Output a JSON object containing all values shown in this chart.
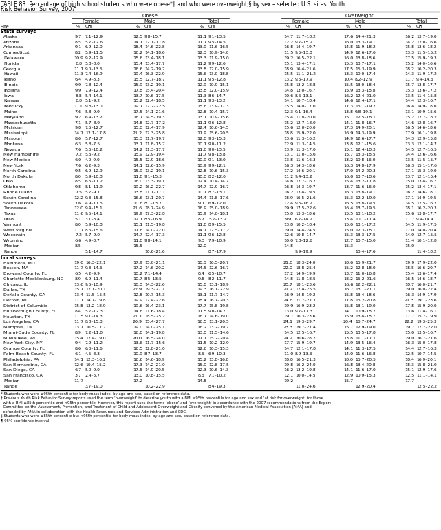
{
  "title_line1": "TABLE 83. Percentage of high school students who were obese*† and who were overweight,§ by sex – selected U.S. sites, Youth",
  "title_line2": "Risk Behavior Survey, 2007",
  "footnotes": [
    "* Students who were ≥95th percentile for body mass index, by age and sex, based on reference data.",
    "† Previous Youth Risk Behavior Survey reports used the term ‘overweight’ to describe youth with a BMI ≥95th percentile for age and sex and ‘at risk for overweight’ for those",
    "  with a BMI ≥85th percentile and <95th percentile. However, this report uses the terms ‘obese’ and ‘overweight’ in accordance with the 2007 recommendations from the Expert",
    "  Committee on the Assessment, Prevention, and Treatment of Child and Adolescent Overweight and Obesity convened by the American Medical Association (AMA) and",
    "  cofunded by AMA in collaboration with the Health Resources and Services Administration and CDC.",
    "§ Students who were ≥85th percentile but <95th percentile for body mass index, by age and sex, based on reference data.",
    "¶ 95% confidence interval."
  ],
  "states": [
    [
      "Alaska",
      "9.7",
      "7.1–12.9",
      "12.5",
      "9.8–15.7",
      "11.1",
      "9.1–13.5",
      "14.7",
      "11.7–18.2",
      "17.6",
      "14.4–21.3",
      "16.2",
      "13.7–19.0"
    ],
    [
      "Arizona",
      "8.5",
      "5.7–12.6",
      "14.7",
      "12.1–17.8",
      "11.7",
      "9.5–14.5",
      "12.2",
      "9.7–15.2",
      "16.0",
      "13.3–19.1",
      "14.2",
      "12.0–16.6"
    ],
    [
      "Arkansas",
      "9.1",
      "6.9–12.0",
      "18.4",
      "14.6–22.8",
      "13.9",
      "11.6–16.5",
      "16.8",
      "14.4–19.7",
      "14.8",
      "11.9–18.2",
      "15.8",
      "13.6–18.2"
    ],
    [
      "Connecticut",
      "8.2",
      "5.9–11.5",
      "16.2",
      "14.1–18.6",
      "12.3",
      "10.9–14.0",
      "11.5",
      "9.5–13.8",
      "14.9",
      "12.6–17.6",
      "13.3",
      "11.5–15.2"
    ],
    [
      "Delaware",
      "10.9",
      "9.2–12.9",
      "15.6",
      "13.4–18.1",
      "13.3",
      "11.9–15.0",
      "19.2",
      "16.5–22.1",
      "16.0",
      "13.8–18.6",
      "17.5",
      "15.9–19.3"
    ],
    [
      "Florida",
      "6.8",
      "5.8–8.0",
      "15.4",
      "13.4–17.7",
      "11.2",
      "9.9–12.6",
      "15.1",
      "13.4–17.1",
      "15.3",
      "13.7–17.1",
      "15.2",
      "14.0–16.6"
    ],
    [
      "Georgia",
      "11.1",
      "9.0–13.5",
      "16.6",
      "14.2–19.2",
      "13.8",
      "12.0–15.9",
      "18.9",
      "16.4–21.6",
      "17.5",
      "15.3–19.9",
      "18.2",
      "16.2–20.3"
    ],
    [
      "Hawaii",
      "11.3",
      "7.4–16.9",
      "19.4",
      "16.3–22.9",
      "15.6",
      "13.0–18.8",
      "15.5",
      "11.1–21.2",
      "13.3",
      "10.0–17.4",
      "14.3",
      "11.9–17.2"
    ],
    [
      "Idaho",
      "6.4",
      "4.9–8.3",
      "15.5",
      "12.7–18.7",
      "11.1",
      "9.5–12.8",
      "13.2",
      "9.5–17.9",
      "10.4",
      "8.2–12.9",
      "11.7",
      "9.4–14.6"
    ],
    [
      "Illinois",
      "9.9",
      "7.8–12.4",
      "15.9",
      "13.2–19.1",
      "12.9",
      "10.9–15.1",
      "15.8",
      "13.2–18.8",
      "15.5",
      "13.0–18.4",
      "15.7",
      "13.8–17.7"
    ],
    [
      "Indiana",
      "9.9",
      "7.9–12.4",
      "17.8",
      "15.4–20.4",
      "13.8",
      "12.0–15.9",
      "14.8",
      "13.0–16.7",
      "15.9",
      "13.3–18.8",
      "15.3",
      "13.6–17.2"
    ],
    [
      "Iowa",
      "8.8",
      "5.4–14.1",
      "13.7",
      "10.6–17.5",
      "11.3",
      "8.6–14.7",
      "10.6",
      "8.6–13.1",
      "16.2",
      "12.4–21.0",
      "13.5",
      "11.4–15.8"
    ],
    [
      "Kansas",
      "6.8",
      "5.1–9.2",
      "15.2",
      "12.4–18.5",
      "11.1",
      "9.3–13.2",
      "14.1",
      "10.7–18.4",
      "14.6",
      "12.4–17.1",
      "14.4",
      "12.3–16.7"
    ],
    [
      "Kentucky",
      "11.0",
      "9.3–13.0",
      "19.7",
      "17.2–22.5",
      "15.6",
      "13.9–17.3",
      "15.5",
      "14.0–17.0",
      "17.3",
      "15.1–19.7",
      "16.4",
      "14.9–18.0"
    ],
    [
      "Maine",
      "7.6",
      "5.8–9.9",
      "17.5",
      "14.1–21.6",
      "12.8",
      "10.4–15.7",
      "12.3",
      "9.1–16.4",
      "13.8",
      "9.8–19.1",
      "13.1",
      "10.9–15.6"
    ],
    [
      "Maryland",
      "9.2",
      "6.4–13.2",
      "16.7",
      "14.5–19.3",
      "13.1",
      "10.9–15.6",
      "15.4",
      "11.8–20.0",
      "15.1",
      "12.5–18.1",
      "15.2",
      "12.7–18.2"
    ],
    [
      "Massachusetts",
      "7.1",
      "5.7–8.9",
      "14.8",
      "12.7–17.2",
      "11.1",
      "9.6–12.8",
      "15.2",
      "12.7–18.0",
      "14.1",
      "11.8–16.7",
      "14.6",
      "12.8–16.7"
    ],
    [
      "Michigan",
      "9.8",
      "7.5–12.7",
      "15.0",
      "12.4–17.9",
      "12.4",
      "10.6–14.5",
      "15.6",
      "12.0–20.0",
      "17.3",
      "14.9–20.1",
      "16.5",
      "14.6–18.6"
    ],
    [
      "Mississippi",
      "14.7",
      "12.1–17.8",
      "21.2",
      "17.3–25.8",
      "17.9",
      "15.6–20.5",
      "18.8",
      "15.9–22.0",
      "16.9",
      "14.3–19.9",
      "17.9",
      "16.1–19.8"
    ],
    [
      "Missouri",
      "8.6",
      "5.7–12.7",
      "15.3",
      "11.7–19.7",
      "12.0",
      "9.3–15.3",
      "13.6",
      "11.3–16.2",
      "14.9",
      "12.6–17.7",
      "14.3",
      "12.9–15.8"
    ],
    [
      "Montana",
      "6.3",
      "5.3–7.5",
      "13.7",
      "11.8–15.7",
      "10.1",
      "9.0–11.2",
      "12.9",
      "11.3–14.5",
      "13.8",
      "12.1–15.6",
      "13.3",
      "12.1–14.7"
    ],
    [
      "Nevada",
      "7.6",
      "5.6–10.2",
      "14.2",
      "11.3–17.7",
      "11.0",
      "9.0–13.5",
      "13.9",
      "11.3–17.0",
      "15.1",
      "12.4–18.3",
      "14.5",
      "12.7–16.5"
    ],
    [
      "New Hampshire",
      "7.2",
      "5.6–9.2",
      "15.9",
      "12.9–19.4",
      "11.7",
      "9.8–13.8",
      "13.1",
      "11.0–15.6",
      "15.7",
      "13.3–18.5",
      "14.4",
      "12.6–16.6"
    ],
    [
      "New Mexico",
      "6.0",
      "4.0–9.0",
      "15.5",
      "12.9–18.6",
      "10.9",
      "9.1–13.0",
      "13.8",
      "11.6–16.3",
      "13.2",
      "10.8–16.0",
      "13.5",
      "11.5–15.7"
    ],
    [
      "New York",
      "7.6",
      "6.2–9.3",
      "14.1",
      "12.6–15.9",
      "10.9",
      "9.9–12.1",
      "16.3",
      "14.3–18.6",
      "16.3",
      "14.8–17.9",
      "16.3",
      "15.1–17.6"
    ],
    [
      "North Carolina",
      "9.5",
      "6.9–12.9",
      "15.9",
      "13.2–19.1",
      "12.8",
      "10.6–15.3",
      "17.2",
      "14.6–20.1",
      "17.0",
      "14.2–20.3",
      "17.1",
      "15.3–19.0"
    ],
    [
      "North Dakota",
      "8.0",
      "5.9–10.8",
      "11.8",
      "9.1–15.3",
      "10.0",
      "8.2–12.0",
      "11.2",
      "9.4–13.2",
      "16.0",
      "13.7–18.6",
      "13.7",
      "12.1–15.4"
    ],
    [
      "Ohio",
      "8.5",
      "6.5–11.2",
      "16.0",
      "13.3–19.1",
      "12.4",
      "10.4–14.7",
      "14.6",
      "12.7–16.7",
      "15.4",
      "13.2–17.8",
      "15.0",
      "13.4–16.7"
    ],
    [
      "Oklahoma",
      "9.8",
      "8.1–11.9",
      "19.2",
      "16.2–22.7",
      "14.7",
      "12.9–16.7",
      "16.8",
      "14.3–19.7",
      "13.7",
      "11.6–16.0",
      "15.2",
      "13.4–17.1"
    ],
    [
      "Rhode Island",
      "7.5",
      "5.7–9.7",
      "13.8",
      "11.1–17.1",
      "10.7",
      "8.7–13.1",
      "16.2",
      "13.4–19.5",
      "16.3",
      "13.8–19.1",
      "16.2",
      "14.6–18.1"
    ],
    [
      "South Carolina",
      "12.2",
      "9.3–15.8",
      "16.6",
      "13.1–20.7",
      "14.4",
      "11.8–17.6",
      "18.9",
      "16.5–21.6",
      "15.3",
      "12.2–19.0",
      "17.1",
      "14.9–19.5"
    ],
    [
      "South Dakota",
      "7.6",
      "4.9–11.5",
      "10.6",
      "8.1–13.7",
      "9.1",
      "6.9–12.0",
      "12.4",
      "9.5–16.2",
      "16.5",
      "13.8–19.5",
      "14.5",
      "12.5–16.7"
    ],
    [
      "Tennessee",
      "12.0",
      "9.4–15.1",
      "21.6",
      "18.7–24.9",
      "16.9",
      "15.0–18.9",
      "19.9",
      "17.5–22.6",
      "16.4",
      "13.7–19.5",
      "18.1",
      "16.2–20.3"
    ],
    [
      "Texas",
      "11.6",
      "9.5–14.1",
      "19.9",
      "17.3–22.8",
      "15.9",
      "14.0–18.1",
      "15.8",
      "13.3–18.6",
      "15.5",
      "13.1–18.2",
      "15.6",
      "13.8–17.7"
    ],
    [
      "Utah",
      "5.1",
      "3.1–8.4",
      "12.1",
      "8.5–16.9",
      "8.7",
      "5.7–13.2",
      "9.9",
      "6.7–14.2",
      "13.4",
      "10.1–17.4",
      "11.7",
      "9.4–14.4"
    ],
    [
      "Vermont",
      "8.0",
      "5.9–10.8",
      "15.1",
      "11.5–19.8",
      "11.8",
      "8.9–15.5",
      "13.8",
      "10.2–18.4",
      "15.0",
      "13.1–17.2",
      "14.5",
      "11.9–17.5"
    ],
    [
      "West Virginia",
      "11.7",
      "8.6–15.6",
      "17.6",
      "14.0–22.0",
      "14.7",
      "12.5–17.2",
      "19.0",
      "14.4–24.5",
      "15.0",
      "12.3–18.1",
      "17.0",
      "14.0–20.4"
    ],
    [
      "Wisconsin",
      "7.2",
      "5.7–9.0",
      "14.7",
      "12.4–17.3",
      "11.1",
      "9.6–12.8",
      "12.6",
      "10.8–14.7",
      "15.3",
      "13.3–17.5",
      "14.0",
      "12.7–15.5"
    ],
    [
      "Wyoming",
      "6.6",
      "4.9–8.7",
      "11.8",
      "9.8–14.1",
      "9.3",
      "7.9–10.9",
      "10.0",
      "7.8–12.6",
      "12.7",
      "10.7–15.0",
      "11.4",
      "10.1–12.8"
    ]
  ],
  "state_median": [
    "Median",
    "8.5",
    "",
    "15.5",
    "",
    "12.0",
    "",
    "14.8",
    "",
    "15.3",
    "",
    "15.0",
    ""
  ],
  "state_range": [
    "Range",
    "5.1–14.7",
    "",
    "10.6–21.6",
    "",
    "8.7–17.9",
    "",
    "9.9–19.9",
    "",
    "10.4–17.6",
    "",
    "11.4–18.2",
    ""
  ],
  "locals": [
    [
      "Baltimore, MD",
      "19.0",
      "16.3–22.1",
      "17.9",
      "15.0–21.1",
      "18.5",
      "16.5–20.7",
      "21.0",
      "18.3–24.0",
      "18.6",
      "15.9–21.7",
      "19.9",
      "17.9–22.0"
    ],
    [
      "Boston, MA",
      "11.7",
      "9.3–14.6",
      "17.2",
      "14.6–20.2",
      "14.5",
      "12.6–16.7",
      "22.0",
      "18.8–25.4",
      "15.2",
      "12.8–18.0",
      "18.5",
      "16.6–20.7"
    ],
    [
      "Broward County, FL",
      "6.5",
      "4.2–9.9",
      "10.2",
      "7.1–14.4",
      "8.4",
      "6.5–10.7",
      "17.2",
      "14.9–19.9",
      "13.7",
      "11.0–16.8",
      "15.4",
      "13.6–17.4"
    ],
    [
      "Charlotte-Mecklenburg, NC",
      "8.9",
      "6.9–11.4",
      "10.7",
      "8.5–13.5",
      "9.8",
      "8.2–11.7",
      "14.8",
      "11.8–18.5",
      "18.2",
      "15.2–21.6",
      "16.5",
      "14.6–18.7"
    ],
    [
      "Chicago, IL",
      "13.6",
      "9.6–18.9",
      "18.0",
      "14.3–22.6",
      "15.8",
      "13.1–18.9",
      "20.7",
      "18.1–23.6",
      "16.6",
      "12.2–22.1",
      "18.7",
      "16.0–21.7"
    ],
    [
      "Dallas, TX",
      "15.7",
      "12.1–20.1",
      "22.9",
      "19.3–27.1",
      "19.3",
      "16.1–22.9",
      "21.2",
      "17.4–25.5",
      "16.7",
      "13.1–21.1",
      "19.0",
      "16.0–22.4"
    ],
    [
      "DeKalb County, GA",
      "13.4",
      "11.5–15.5",
      "12.8",
      "10.7–15.3",
      "13.1",
      "11.7–14.7",
      "16.9",
      "14.8–19.2",
      "15.8",
      "13.4–18.6",
      "16.3",
      "14.9–17.9"
    ],
    [
      "Detroit, MI",
      "17.1",
      "14.7–19.8",
      "19.9",
      "17.4–22.6",
      "18.4",
      "16.7–20.3",
      "24.6",
      "21.7–27.7",
      "17.8",
      "15.2–20.8",
      "21.3",
      "19.1–23.6"
    ],
    [
      "District of Columbia",
      "15.8",
      "13.2–18.9",
      "19.6",
      "16.4–23.1",
      "17.7",
      "15.8–19.8",
      "19.9",
      "16.9–23.2",
      "15.8",
      "13.1–19.0",
      "17.8",
      "15.9–20.0"
    ],
    [
      "Hillsborough County, FL",
      "8.4",
      "5.7–12.3",
      "14.6",
      "11.6–18.4",
      "11.5",
      "9.0–14.7",
      "13.0",
      "9.7–17.3",
      "14.1",
      "10.9–18.2",
      "13.6",
      "11.4–16.1"
    ],
    [
      "Houston, TX",
      "11.5",
      "9.1–14.3",
      "21.7",
      "18.5–25.2",
      "16.7",
      "14.6–19.0",
      "19.7",
      "16.3–23.6",
      "15.9",
      "13.4–18.7",
      "17.7",
      "15.7–19.9"
    ],
    [
      "Los Angeles, CA",
      "11.7",
      "8.8–15.3",
      "20.9",
      "15.4–27.7",
      "16.5",
      "13.1–20.5",
      "24.1",
      "19.3–29.7",
      "20.4",
      "16.7–24.7",
      "22.2",
      "19.3–25.3"
    ],
    [
      "Memphis, TN",
      "13.7",
      "10.5–17.7",
      "19.0",
      "14.0–25.1",
      "16.2",
      "13.2–19.7",
      "23.3",
      "19.7–27.4",
      "15.7",
      "12.9–19.0",
      "19.7",
      "17.7–22.0"
    ],
    [
      "Miami-Dade County, FL",
      "8.9",
      "7.2–11.0",
      "16.8",
      "14.1–19.8",
      "13.0",
      "11.5–14.6",
      "14.5",
      "12.5–16.7",
      "15.5",
      "13.5–17.8",
      "15.0",
      "13.5–16.7"
    ],
    [
      "Milwaukee, WI",
      "15.4",
      "12.4–19.0",
      "20.0",
      "16.5–24.0",
      "17.7",
      "15.2–20.4",
      "24.2",
      "20.6–28.2",
      "13.8",
      "11.1–17.1",
      "19.0",
      "16.7–21.6"
    ],
    [
      "New York City, NY",
      "9.4",
      "7.9–11.2",
      "13.6",
      "11.7–15.6",
      "11.5",
      "10.2–12.9",
      "17.7",
      "15.9–19.7",
      "14.9",
      "13.5–16.4",
      "16.3",
      "15.0–17.8"
    ],
    [
      "Orange County, FL",
      "8.6",
      "6.3–11.6",
      "16.5",
      "12.8–21.0",
      "12.6",
      "10.3–15.3",
      "14.7",
      "12.1–17.8",
      "14.1",
      "11.3–17.5",
      "14.4",
      "12.7–16.3"
    ],
    [
      "Palm Beach County, FL",
      "6.1",
      "4.5–8.3",
      "10.9",
      "8.7–13.7",
      "8.5",
      "6.9–10.3",
      "11.0",
      "8.9–13.6",
      "14.0",
      "11.6–16.8",
      "12.5",
      "10.7–14.5"
    ],
    [
      "Philadelphia, PA",
      "14.1",
      "12.3–16.2",
      "16.6",
      "14.6–18.9",
      "15.2",
      "13.8–16.8",
      "18.8",
      "16.5–21.3",
      "18.0",
      "15.7–20.5",
      "18.4",
      "16.9–20.1"
    ],
    [
      "San Bernardino, CA",
      "12.6",
      "10.4–15.2",
      "17.3",
      "14.2–21.0",
      "15.0",
      "12.8–17.5",
      "19.8",
      "16.2–24.0",
      "16.8",
      "13.4–20.8",
      "18.3",
      "15.8–21.0"
    ],
    [
      "San Diego, CA",
      "6.7",
      "5.0–9.0",
      "17.5",
      "14.9–20.5",
      "12.3",
      "10.6–14.3",
      "16.2",
      "13.2–19.8",
      "14.1",
      "11.6–17.0",
      "15.1",
      "12.9–17.6"
    ],
    [
      "San Francisco, CA",
      "3.7",
      "2.4–5.7",
      "13.0",
      "10.8–15.5",
      "8.5",
      "7.1–10.2",
      "12.1",
      "10.0–14.5",
      "12.9",
      "10.9–15.3",
      "12.5",
      "11.1–14.1"
    ]
  ],
  "local_median": [
    "Median",
    "11.7",
    "",
    "17.2",
    "",
    "14.8",
    "",
    "19.2",
    "",
    "15.7",
    "",
    "17.7",
    ""
  ],
  "local_range": [
    "Range",
    "3.7–19.0",
    "",
    "10.2–22.9",
    "",
    "8.4–19.3",
    "",
    "11.0–24.6",
    "",
    "12.9–20.4",
    "",
    "12.5–22.2",
    ""
  ]
}
